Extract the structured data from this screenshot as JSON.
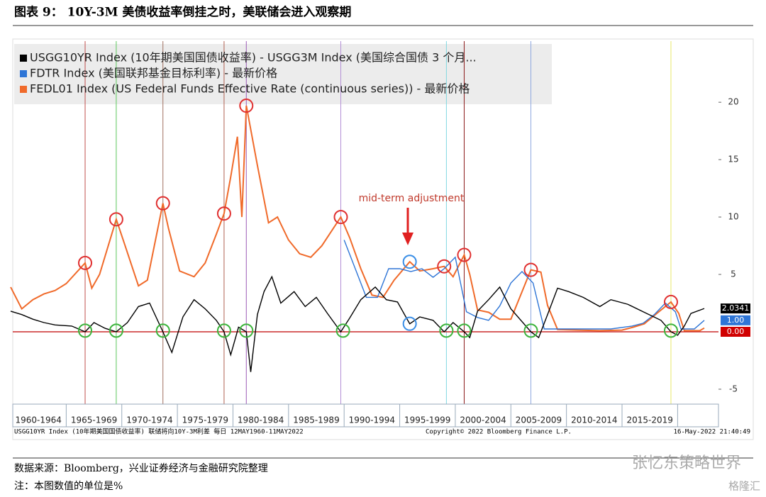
{
  "chart_data": {
    "type": "line",
    "title": "图表 9： 10Y-3M 美债收益率倒挂之时，美联储会进入观察期",
    "xlim": [
      1960,
      2022.4
    ],
    "ylim": [
      -6.3,
      25.2
    ],
    "yticks": [
      -5,
      5,
      10,
      15,
      20
    ],
    "period_labels": [
      "1960-1964",
      "1965-1969",
      "1970-1974",
      "1975-1979",
      "1980-1984",
      "1985-1989",
      "1990-1994",
      "1995-1999",
      "2000-2004",
      "2005-2009",
      "2010-2014",
      "2015-2019"
    ],
    "series": [
      {
        "name": "USGG10YR Index (10年期美国国债收益率) - USGG3M Index (美国综合国债 3 个月...",
        "color": "#000000",
        "x": [
          1960,
          1961,
          1962,
          1963,
          1964,
          1965.5,
          1966.7,
          1967.5,
          1968.5,
          1969.5,
          1970.5,
          1971.5,
          1972.5,
          1973.7,
          1974.5,
          1975.5,
          1976.5,
          1977.5,
          1978.5,
          1979.2,
          1979.8,
          1980.5,
          1981.2,
          1981.6,
          1982.2,
          1982.8,
          1983.5,
          1984.3,
          1985.5,
          1986.5,
          1987.5,
          1988.5,
          1989.7,
          1990.5,
          1991.5,
          1992.8,
          1993.8,
          1994.8,
          1995.9,
          1996.8,
          1998,
          1999,
          1999.8,
          2000.8,
          2001.3,
          2002,
          2003,
          2004,
          2005,
          2006.8,
          2007.5,
          2008.3,
          2009.2,
          2010.2,
          2011.5,
          2013,
          2014,
          2015.5,
          2017,
          2018.5,
          2019.4,
          2020,
          2020.6,
          2021.2,
          2022.4
        ],
        "values": [
          1.8,
          1.5,
          1.1,
          0.8,
          0.6,
          0.5,
          0.0,
          0.8,
          0.3,
          0.0,
          0.8,
          2.2,
          2.5,
          0.0,
          -1.8,
          1.3,
          2.8,
          2.0,
          1.0,
          0.0,
          -2.0,
          0.4,
          0.0,
          -3.5,
          1.5,
          3.5,
          4.8,
          2.5,
          3.5,
          2.2,
          3.0,
          1.6,
          0.0,
          1.2,
          2.8,
          3.9,
          2.8,
          2.6,
          0.7,
          1.3,
          1.0,
          0.0,
          0.8,
          0.0,
          -0.5,
          1.8,
          2.8,
          3.9,
          2.0,
          0.0,
          -0.5,
          1.5,
          3.8,
          3.5,
          3.0,
          2.2,
          2.8,
          2.4,
          1.7,
          1.0,
          0.0,
          -0.3,
          0.5,
          1.6,
          2.0341
        ],
        "last_label": "2.0341"
      },
      {
        "name": "FDTR Index (美国联邦基金目标利率) - 最新价格",
        "color": "#2e75d6",
        "x": [
          1990,
          1991,
          1992,
          1993,
          1994,
          1995,
          1996,
          1997,
          1998,
          1999,
          2000,
          2001,
          2002,
          2003,
          2004,
          2005,
          2006,
          2007,
          2008,
          2010,
          2012,
          2014,
          2015.9,
          2016.9,
          2017.9,
          2018.9,
          2019.8,
          2020.3,
          2021.5,
          2022.4
        ],
        "values": [
          8,
          5.5,
          3,
          3,
          5.5,
          5.5,
          5.25,
          5.5,
          4.75,
          5.5,
          6.5,
          1.75,
          1.25,
          1,
          2.25,
          4.25,
          5.25,
          4.25,
          0.25,
          0.25,
          0.25,
          0.25,
          0.5,
          0.75,
          1.5,
          2.5,
          1.75,
          0.25,
          0.25,
          1.0
        ],
        "last_label": "1.00"
      },
      {
        "name": "FEDL01 Index (US Federal Funds Effective Rate (continuous series)) - 最新价格",
        "color": "#f06a2a",
        "x": [
          1960,
          1961,
          1962,
          1963,
          1964,
          1965,
          1966.7,
          1967.3,
          1968,
          1969.5,
          1970.3,
          1971.5,
          1972.3,
          1973.7,
          1974.2,
          1975.2,
          1976.5,
          1977.5,
          1978.5,
          1979.2,
          1979.8,
          1980.4,
          1980.8,
          1981.2,
          1982.2,
          1983.2,
          1984,
          1985,
          1986,
          1987,
          1988,
          1989.7,
          1990.5,
          1991.5,
          1992.5,
          1993.5,
          1994.5,
          1995.9,
          1996.8,
          1998,
          1999,
          1999.8,
          2000.8,
          2001.3,
          2002,
          2003,
          2004,
          2005,
          2006.8,
          2007.7,
          2008.3,
          2009.2,
          2011,
          2013,
          2015,
          2016,
          2017,
          2018,
          2019.4,
          2020.1,
          2020.6,
          2022,
          2022.4
        ],
        "values": [
          3.9,
          2.0,
          2.8,
          3.3,
          3.6,
          4.2,
          6.0,
          3.8,
          5.0,
          9.8,
          7.5,
          4.0,
          4.5,
          11.2,
          9.0,
          5.3,
          4.8,
          6.0,
          8.5,
          10.3,
          13.5,
          17.0,
          10.0,
          19.7,
          14.5,
          9.5,
          10.0,
          8.0,
          6.8,
          6.5,
          7.5,
          10.0,
          8.2,
          5.5,
          3.2,
          3.0,
          4.5,
          6.1,
          5.3,
          5.5,
          5.7,
          4.8,
          6.7,
          5.0,
          1.9,
          1.7,
          1.1,
          1.1,
          5.4,
          5.2,
          2.3,
          0.2,
          0.15,
          0.1,
          0.15,
          0.4,
          0.7,
          1.5,
          2.6,
          1.6,
          0.1,
          0.1,
          0.33
        ]
      }
    ],
    "zero_line": {
      "value": 0,
      "label": "0.00",
      "color": "#c00000"
    },
    "event_lines": [
      {
        "x": 1966.7,
        "color": "#c0504d"
      },
      {
        "x": 1969.5,
        "color": "#5cc75c"
      },
      {
        "x": 1973.7,
        "color": "#a07060"
      },
      {
        "x": 1979.2,
        "color": "#b06050"
      },
      {
        "x": 1981.2,
        "color": "#9b59b6"
      },
      {
        "x": 1989.7,
        "color": "#b38fd6"
      },
      {
        "x": 1999.2,
        "color": "#7fd7e0"
      },
      {
        "x": 2000.8,
        "color": "#8b1a1a"
      },
      {
        "x": 2006.8,
        "color": "#8fa8e0"
      },
      {
        "x": 2019.4,
        "color": "#e8e86a"
      }
    ],
    "markers": [
      {
        "x": 1966.7,
        "y": 6.0,
        "color": "#e03030"
      },
      {
        "x": 1969.5,
        "y": 9.8,
        "color": "#e03030"
      },
      {
        "x": 1973.7,
        "y": 11.2,
        "color": "#e03030"
      },
      {
        "x": 1979.2,
        "y": 10.3,
        "color": "#e03030"
      },
      {
        "x": 1981.2,
        "y": 19.7,
        "color": "#e03030"
      },
      {
        "x": 1989.7,
        "y": 10.0,
        "color": "#e03030"
      },
      {
        "x": 1999.0,
        "y": 5.7,
        "color": "#e03030"
      },
      {
        "x": 2000.8,
        "y": 6.7,
        "color": "#e03030"
      },
      {
        "x": 2006.8,
        "y": 5.4,
        "color": "#e03030"
      },
      {
        "x": 2019.4,
        "y": 2.6,
        "color": "#e03030"
      },
      {
        "x": 1995.9,
        "y": 6.1,
        "color": "#3a8ee6"
      },
      {
        "x": 1995.9,
        "y": 0.7,
        "color": "#3a8ee6"
      },
      {
        "x": 1966.7,
        "y": 0.1,
        "color": "#3cb43c"
      },
      {
        "x": 1969.5,
        "y": 0.1,
        "color": "#3cb43c"
      },
      {
        "x": 1973.7,
        "y": 0.1,
        "color": "#3cb43c"
      },
      {
        "x": 1979.2,
        "y": 0.1,
        "color": "#3cb43c"
      },
      {
        "x": 1981.2,
        "y": 0.1,
        "color": "#3cb43c"
      },
      {
        "x": 1989.9,
        "y": 0.1,
        "color": "#3cb43c"
      },
      {
        "x": 1999.2,
        "y": 0.1,
        "color": "#3cb43c"
      },
      {
        "x": 2000.8,
        "y": 0.1,
        "color": "#3cb43c"
      },
      {
        "x": 2006.8,
        "y": 0.1,
        "color": "#3cb43c"
      },
      {
        "x": 2019.4,
        "y": 0.1,
        "color": "#3cb43c"
      }
    ],
    "annotation": "mid-term adjustment",
    "footer_left": "USGG10YR Index (10年期美国国债收益率) 联储将向10Y-3M利差  每日 12MAY1960-11MAY2022",
    "footer_copyright": "Copyright© 2022 Bloomberg Finance L.P.",
    "footer_timestamp": "16-May-2022 21:40:49",
    "source": "数据来源：Bloomberg，兴业证券经济与金融研究院整理",
    "note": "注：本图数值的单位是%",
    "watermark": "张忆东策略世界",
    "watermark2": "格隆汇"
  }
}
